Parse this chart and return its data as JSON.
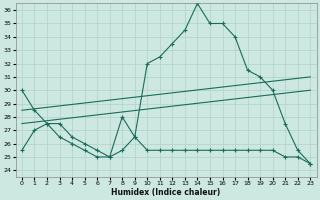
{
  "xlabel": "Humidex (Indice chaleur)",
  "ylabel": "",
  "xlim": [
    -0.5,
    23.5
  ],
  "ylim": [
    23.5,
    36.5
  ],
  "yticks": [
    24,
    25,
    26,
    27,
    28,
    29,
    30,
    31,
    32,
    33,
    34,
    35,
    36
  ],
  "xticks": [
    0,
    1,
    2,
    3,
    4,
    5,
    6,
    7,
    8,
    9,
    10,
    11,
    12,
    13,
    14,
    15,
    16,
    17,
    18,
    19,
    20,
    21,
    22,
    23
  ],
  "bg_color": "#cce8e0",
  "line_color": "#1a6b5a",
  "grid_color": "#b0d0c8",
  "line1_x": [
    0,
    1,
    2,
    3,
    4,
    5,
    6,
    7,
    8,
    9,
    10,
    11,
    12,
    13,
    14,
    15,
    16,
    17,
    18,
    19,
    20,
    21,
    22,
    23
  ],
  "line1_y": [
    30.0,
    28.5,
    27.5,
    27.5,
    26.5,
    26.0,
    25.5,
    25.0,
    28.0,
    26.5,
    32.0,
    32.5,
    33.5,
    34.5,
    36.5,
    35.0,
    35.0,
    34.0,
    31.5,
    31.0,
    30.0,
    27.5,
    25.5,
    24.5
  ],
  "line2_x": [
    0,
    23
  ],
  "line2_y": [
    28.5,
    31.0
  ],
  "line3_x": [
    0,
    23
  ],
  "line3_y": [
    27.5,
    30.0
  ],
  "line4_x": [
    0,
    1,
    2,
    3,
    4,
    5,
    6,
    7,
    8,
    9,
    10,
    11,
    12,
    13,
    14,
    15,
    16,
    17,
    18,
    19,
    20,
    21,
    22,
    23
  ],
  "line4_y": [
    25.5,
    27.0,
    27.5,
    26.5,
    26.0,
    25.5,
    25.0,
    25.0,
    25.5,
    26.5,
    25.5,
    25.5,
    25.5,
    25.5,
    25.5,
    25.5,
    25.5,
    25.5,
    25.5,
    25.5,
    25.5,
    25.0,
    25.0,
    24.5
  ]
}
